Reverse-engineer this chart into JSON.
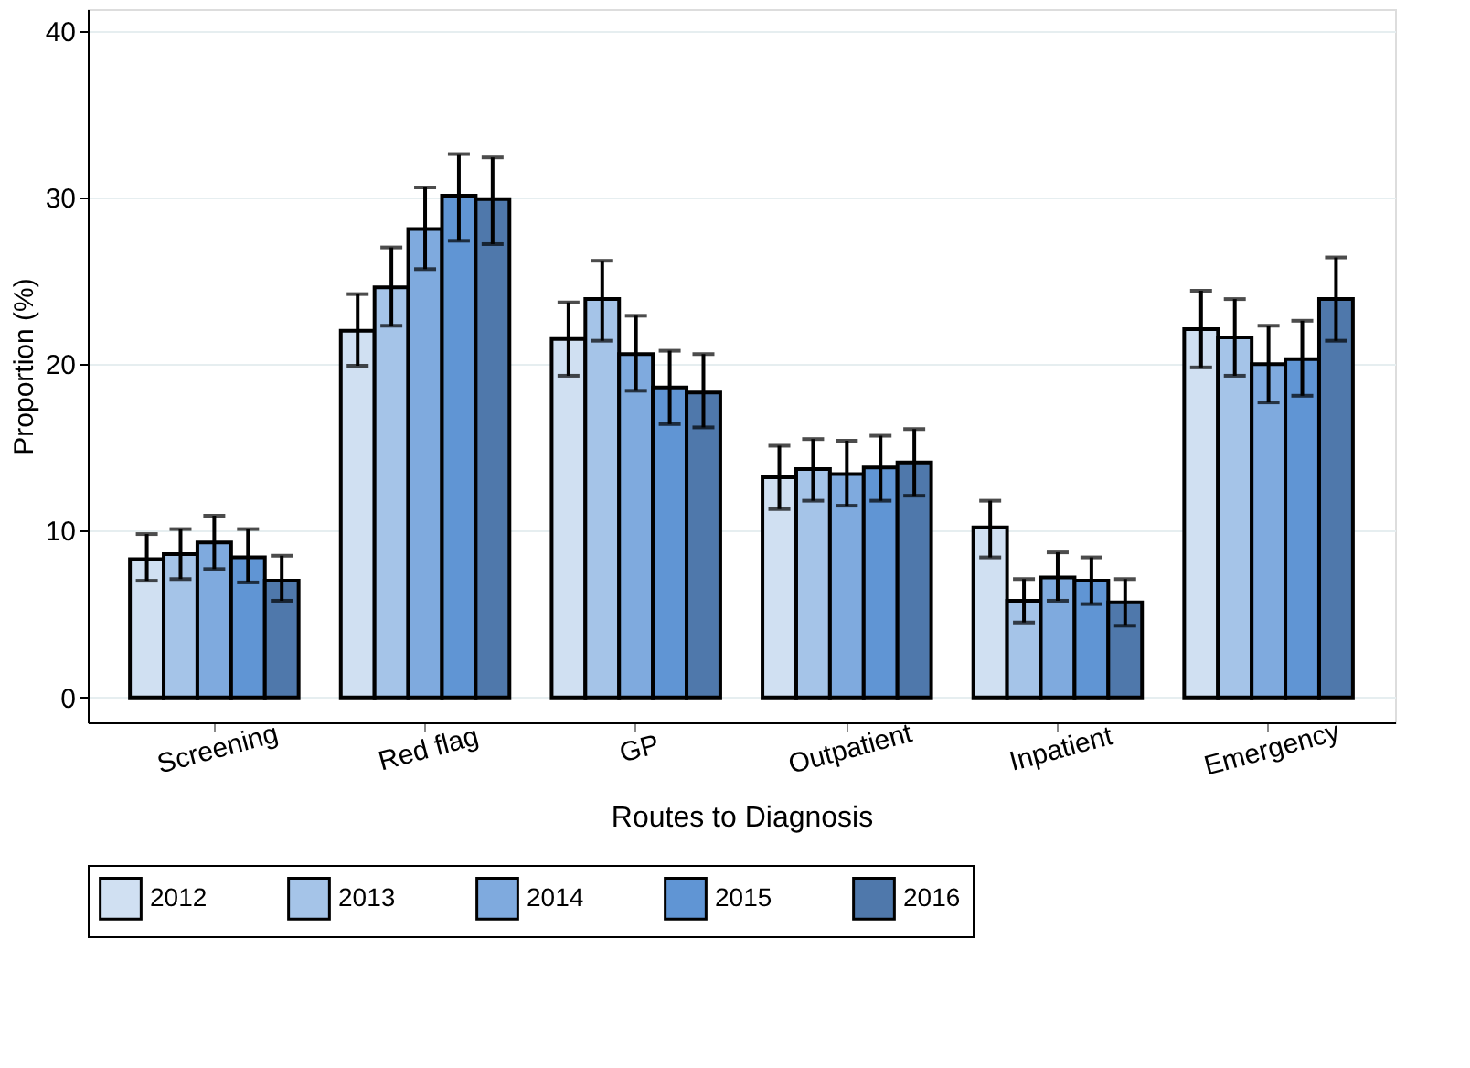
{
  "chart_data": {
    "type": "bar",
    "xlabel": "Routes to Diagnosis",
    "ylabel": "Proportion (%)",
    "categories": [
      "Screening",
      "Red flag",
      "GP",
      "Outpatient",
      "Inpatient",
      "Emergency"
    ],
    "series": [
      {
        "name": "2012",
        "color": "#d0e0f2",
        "values": [
          8.3,
          22.0,
          21.5,
          13.2,
          10.2,
          22.1
        ],
        "errors": [
          [
            7.0,
            9.8
          ],
          [
            19.9,
            24.2
          ],
          [
            19.3,
            23.7
          ],
          [
            11.3,
            15.1
          ],
          [
            8.4,
            11.8
          ],
          [
            19.8,
            24.4
          ]
        ]
      },
      {
        "name": "2013",
        "color": "#a5c4e8",
        "values": [
          8.6,
          24.6,
          23.9,
          13.7,
          5.8,
          21.6
        ],
        "errors": [
          [
            7.1,
            10.1
          ],
          [
            22.3,
            27.0
          ],
          [
            21.4,
            26.2
          ],
          [
            11.8,
            15.5
          ],
          [
            4.5,
            7.1
          ],
          [
            19.3,
            23.9
          ]
        ]
      },
      {
        "name": "2014",
        "color": "#7faade",
        "values": [
          9.3,
          28.1,
          20.6,
          13.4,
          7.2,
          20.0
        ],
        "errors": [
          [
            7.7,
            10.9
          ],
          [
            25.7,
            30.6
          ],
          [
            18.4,
            22.9
          ],
          [
            11.5,
            15.4
          ],
          [
            5.8,
            8.7
          ],
          [
            17.7,
            22.3
          ]
        ]
      },
      {
        "name": "2015",
        "color": "#6095d4",
        "values": [
          8.4,
          30.1,
          18.6,
          13.8,
          7.0,
          20.3
        ],
        "errors": [
          [
            6.9,
            10.1
          ],
          [
            27.4,
            32.6
          ],
          [
            16.4,
            20.8
          ],
          [
            11.8,
            15.7
          ],
          [
            5.6,
            8.4
          ],
          [
            18.1,
            22.6
          ]
        ]
      },
      {
        "name": "2016",
        "color": "#4f78ab",
        "values": [
          7.0,
          29.9,
          18.3,
          14.1,
          5.7,
          23.9
        ],
        "errors": [
          [
            5.8,
            8.5
          ],
          [
            27.2,
            32.4
          ],
          [
            16.2,
            20.6
          ],
          [
            12.1,
            16.1
          ],
          [
            4.3,
            7.1
          ],
          [
            21.4,
            26.4
          ]
        ]
      }
    ],
    "ylim": [
      -1.5,
      41.3
    ],
    "yticks": [
      0,
      10,
      20,
      30,
      40
    ],
    "grid": "y",
    "legend": "bottom"
  }
}
